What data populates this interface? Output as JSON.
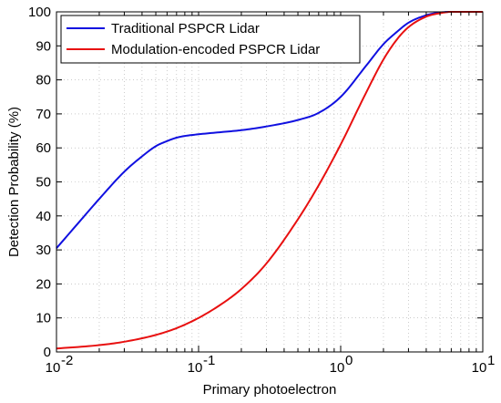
{
  "chart_data": {
    "type": "line",
    "title": "",
    "xlabel": "Primary photoelectron",
    "ylabel": "Detection Probability (%)",
    "x_scale": "log",
    "xlim": [
      0.01,
      10
    ],
    "ylim": [
      0,
      100
    ],
    "grid": true,
    "legend_position": "top-left",
    "x_ticks": [
      {
        "value": 0.01,
        "base": "10",
        "exp": "-2"
      },
      {
        "value": 0.1,
        "base": "10",
        "exp": "-1"
      },
      {
        "value": 1,
        "base": "10",
        "exp": "0"
      },
      {
        "value": 10,
        "base": "10",
        "exp": "1"
      }
    ],
    "y_ticks": [
      0,
      10,
      20,
      30,
      40,
      50,
      60,
      70,
      80,
      90,
      100
    ],
    "series": [
      {
        "name": "Traditional PSPCR Lidar",
        "color": "#1010e0",
        "x": [
          0.01,
          0.015,
          0.02,
          0.03,
          0.04,
          0.05,
          0.06,
          0.07,
          0.08,
          0.1,
          0.15,
          0.2,
          0.3,
          0.5,
          0.7,
          1.0,
          1.5,
          2.0,
          2.5,
          3.0,
          4.0,
          5.0,
          6.0,
          8.0,
          10.0
        ],
        "y": [
          30.5,
          39,
          45,
          53,
          57.5,
          60.5,
          62,
          63,
          63.5,
          64,
          64.7,
          65.2,
          66.3,
          68.2,
          70.3,
          75,
          84,
          90.5,
          94.2,
          96.8,
          99.0,
          99.8,
          100,
          100,
          100
        ]
      },
      {
        "name": "Modulation-encoded PSPCR Lidar",
        "color": "#e81010",
        "x": [
          0.01,
          0.02,
          0.03,
          0.05,
          0.07,
          0.1,
          0.15,
          0.2,
          0.3,
          0.5,
          0.7,
          1.0,
          1.5,
          2.0,
          2.5,
          3.0,
          4.0,
          5.0,
          6.0,
          8.0,
          10.0
        ],
        "y": [
          1,
          2,
          3,
          5,
          7,
          10,
          14.5,
          18.5,
          26,
          39,
          49,
          61,
          76,
          86,
          92,
          95.5,
          98.6,
          99.6,
          100,
          100,
          100
        ]
      }
    ]
  }
}
